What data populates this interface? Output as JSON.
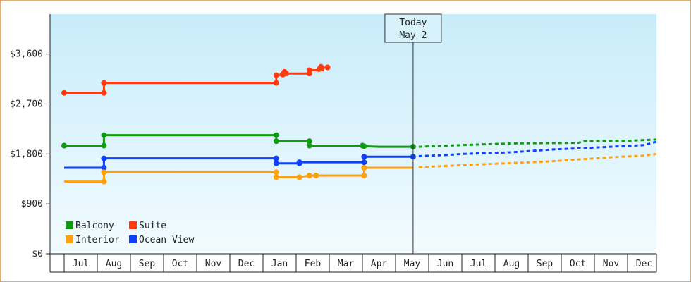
{
  "chart_data": {
    "type": "line",
    "ylim": [
      0,
      4320
    ],
    "yticks": [
      {
        "value": 0,
        "label": "$0"
      },
      {
        "value": 900,
        "label": "$900"
      },
      {
        "value": 1800,
        "label": "$1,800"
      },
      {
        "value": 2700,
        "label": "$2,700"
      },
      {
        "value": 3600,
        "label": "$3,600"
      }
    ],
    "months": [
      "Jul",
      "Aug",
      "Sep",
      "Oct",
      "Nov",
      "Dec",
      "Jan",
      "Feb",
      "Mar",
      "Apr",
      "May",
      "Jun",
      "Jul",
      "Aug",
      "Sep",
      "Oct",
      "Nov",
      "Dec"
    ],
    "xlim": [
      -0.45,
      17.95
    ],
    "today": {
      "title": "Today",
      "date": "May 2",
      "x": 10.03
    },
    "legend_position": "bottom-left",
    "series": [
      {
        "name": "Suite",
        "color": "#ff3a10",
        "points": [
          [
            -0.5,
            2900
          ],
          [
            0.7,
            2900
          ],
          [
            0.7,
            3080
          ],
          [
            5.9,
            3080
          ],
          [
            5.9,
            3220
          ],
          [
            6.0,
            3220
          ],
          [
            6.1,
            3280
          ],
          [
            6.15,
            3250
          ],
          [
            6.2,
            3250
          ],
          [
            6.9,
            3250
          ],
          [
            6.9,
            3310
          ],
          [
            7.3,
            3310
          ],
          [
            7.3,
            3350
          ],
          [
            7.45,
            3360
          ]
        ],
        "projection": []
      },
      {
        "name": "Balcony",
        "color": "#119a11",
        "points": [
          [
            -0.5,
            1950
          ],
          [
            0.7,
            1950
          ],
          [
            0.7,
            2140
          ],
          [
            5.9,
            2140
          ],
          [
            5.9,
            2030
          ],
          [
            6.9,
            2030
          ],
          [
            6.9,
            1950
          ],
          [
            8.5,
            1950
          ],
          [
            8.55,
            1940
          ],
          [
            9.0,
            1930
          ],
          [
            10.03,
            1930
          ]
        ],
        "projection": [
          [
            10.2,
            1930
          ],
          [
            11.5,
            1960
          ],
          [
            13.0,
            1990
          ],
          [
            15.0,
            2000
          ],
          [
            15.2,
            2030
          ],
          [
            16.6,
            2040
          ],
          [
            17.95,
            2060
          ]
        ]
      },
      {
        "name": "Ocean View",
        "color": "#1040ff",
        "points": [
          [
            -0.5,
            1550
          ],
          [
            0.7,
            1550
          ],
          [
            0.7,
            1720
          ],
          [
            5.9,
            1720
          ],
          [
            5.9,
            1630
          ],
          [
            6.6,
            1630
          ],
          [
            6.6,
            1650
          ],
          [
            8.55,
            1650
          ],
          [
            8.55,
            1750
          ],
          [
            10.03,
            1750
          ]
        ],
        "projection": [
          [
            10.2,
            1760
          ],
          [
            11.0,
            1780
          ],
          [
            11.5,
            1800
          ],
          [
            13.0,
            1830
          ],
          [
            14.2,
            1880
          ],
          [
            15.0,
            1900
          ],
          [
            16.0,
            1930
          ],
          [
            17.0,
            1960
          ],
          [
            17.95,
            2020
          ]
        ]
      },
      {
        "name": "Interior",
        "color": "#ffa010",
        "points": [
          [
            -0.5,
            1300
          ],
          [
            0.7,
            1300
          ],
          [
            0.7,
            1470
          ],
          [
            5.9,
            1470
          ],
          [
            5.9,
            1380
          ],
          [
            6.6,
            1380
          ],
          [
            6.6,
            1380
          ],
          [
            6.9,
            1410
          ],
          [
            7.2,
            1410
          ],
          [
            8.55,
            1410
          ],
          [
            8.55,
            1550
          ],
          [
            10.03,
            1550
          ]
        ],
        "projection": [
          [
            10.2,
            1560
          ],
          [
            12.0,
            1610
          ],
          [
            14.0,
            1660
          ],
          [
            15.0,
            1700
          ],
          [
            16.0,
            1740
          ],
          [
            17.0,
            1770
          ],
          [
            17.95,
            1800
          ]
        ]
      }
    ],
    "markers": [
      {
        "series": "Suite",
        "points": [
          [
            -0.5,
            2900
          ],
          [
            0.7,
            2900
          ],
          [
            0.7,
            3080
          ],
          [
            5.9,
            3080
          ],
          [
            5.9,
            3220
          ],
          [
            6.1,
            3230
          ],
          [
            6.15,
            3280
          ],
          [
            6.2,
            3250
          ],
          [
            6.9,
            3250
          ],
          [
            6.9,
            3310
          ],
          [
            7.2,
            3330
          ],
          [
            7.25,
            3370
          ],
          [
            7.45,
            3360
          ]
        ]
      },
      {
        "series": "Balcony",
        "points": [
          [
            -0.5,
            1950
          ],
          [
            0.7,
            1950
          ],
          [
            0.7,
            2140
          ],
          [
            5.9,
            2140
          ],
          [
            5.9,
            2030
          ],
          [
            6.9,
            2030
          ],
          [
            6.9,
            1950
          ],
          [
            8.5,
            1950
          ],
          [
            8.55,
            1940
          ],
          [
            10.03,
            1930
          ]
        ]
      },
      {
        "series": "Ocean View",
        "points": [
          [
            0.7,
            1550
          ],
          [
            0.7,
            1720
          ],
          [
            5.9,
            1720
          ],
          [
            5.9,
            1630
          ],
          [
            6.6,
            1630
          ],
          [
            6.6,
            1650
          ],
          [
            8.55,
            1650
          ],
          [
            8.55,
            1750
          ],
          [
            10.03,
            1750
          ]
        ]
      },
      {
        "series": "Interior",
        "points": [
          [
            0.7,
            1300
          ],
          [
            0.7,
            1470
          ],
          [
            5.9,
            1470
          ],
          [
            5.9,
            1380
          ],
          [
            6.6,
            1380
          ],
          [
            6.9,
            1410
          ],
          [
            7.1,
            1410
          ],
          [
            8.55,
            1410
          ],
          [
            8.55,
            1550
          ]
        ]
      }
    ],
    "legend": [
      {
        "name": "Balcony",
        "color": "#119a11"
      },
      {
        "name": "Suite",
        "color": "#ff3a10"
      },
      {
        "name": "Interior",
        "color": "#ffa010"
      },
      {
        "name": "Ocean View",
        "color": "#1040ff"
      }
    ]
  }
}
